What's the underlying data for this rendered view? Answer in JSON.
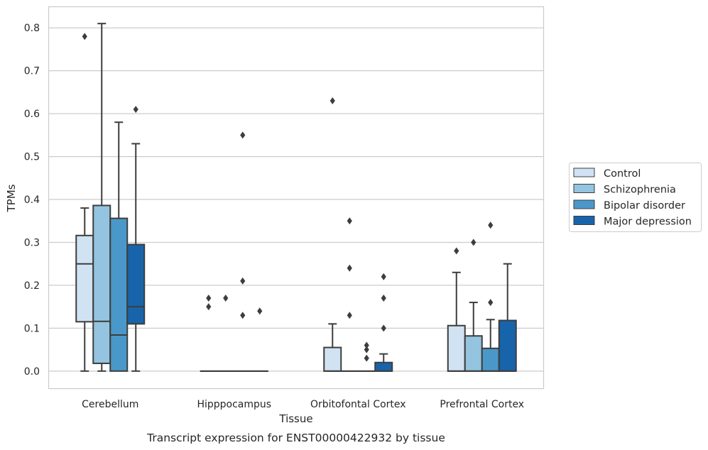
{
  "chart_data": {
    "type": "box",
    "caption": "Transcript expression for ENST00000422932 by tissue",
    "xlabel": "Tissue",
    "ylabel": "TPMs",
    "ylim": [
      -0.04,
      0.85
    ],
    "yticks": [
      0.0,
      0.1,
      0.2,
      0.3,
      0.4,
      0.5,
      0.6,
      0.7,
      0.8
    ],
    "ytick_labels": [
      "0.0",
      "0.1",
      "0.2",
      "0.3",
      "0.4",
      "0.5",
      "0.6",
      "0.7",
      "0.8"
    ],
    "grid": "horizontal",
    "legend_position": "right",
    "categories": [
      "Cerebellum",
      "Hipppocampus",
      "Orbitofontal Cortex",
      "Prefrontal Cortex"
    ],
    "series": [
      {
        "name": "Control",
        "color": "#d1e2f2",
        "boxes": [
          {
            "whislo": 0.0,
            "q1": 0.115,
            "med": 0.25,
            "q3": 0.316,
            "whishi": 0.38,
            "fliers": [
              0.78
            ]
          },
          {
            "whislo": 0.0,
            "q1": 0.0,
            "med": 0.0,
            "q3": 0.0,
            "whishi": 0.0,
            "fliers": [
              0.15,
              0.17
            ]
          },
          {
            "whislo": 0.0,
            "q1": 0.0,
            "med": 0.0,
            "q3": 0.055,
            "whishi": 0.11,
            "fliers": [
              0.63
            ]
          },
          {
            "whislo": 0.0,
            "q1": 0.0,
            "med": 0.0,
            "q3": 0.106,
            "whishi": 0.23,
            "fliers": [
              0.28
            ]
          }
        ]
      },
      {
        "name": "Schizophrenia",
        "color": "#94c4df",
        "boxes": [
          {
            "whislo": 0.0,
            "q1": 0.018,
            "med": 0.116,
            "q3": 0.386,
            "whishi": 0.81,
            "fliers": []
          },
          {
            "whislo": 0.0,
            "q1": 0.0,
            "med": 0.0,
            "q3": 0.0,
            "whishi": 0.0,
            "fliers": [
              0.17
            ]
          },
          {
            "whislo": 0.0,
            "q1": 0.0,
            "med": 0.0,
            "q3": 0.0,
            "whishi": 0.0,
            "fliers": [
              0.13,
              0.24,
              0.35
            ]
          },
          {
            "whislo": 0.0,
            "q1": 0.0,
            "med": 0.0,
            "q3": 0.082,
            "whishi": 0.16,
            "fliers": [
              0.3
            ]
          }
        ]
      },
      {
        "name": "Bipolar disorder",
        "color": "#4a98c9",
        "boxes": [
          {
            "whislo": 0.0,
            "q1": 0.0,
            "med": 0.084,
            "q3": 0.356,
            "whishi": 0.58,
            "fliers": []
          },
          {
            "whislo": 0.0,
            "q1": 0.0,
            "med": 0.0,
            "q3": 0.0,
            "whishi": 0.0,
            "fliers": [
              0.13,
              0.21,
              0.55
            ]
          },
          {
            "whislo": 0.0,
            "q1": 0.0,
            "med": 0.0,
            "q3": 0.0,
            "whishi": 0.0,
            "fliers": [
              0.03,
              0.05,
              0.06
            ]
          },
          {
            "whislo": 0.0,
            "q1": 0.0,
            "med": 0.0,
            "q3": 0.053,
            "whishi": 0.12,
            "fliers": [
              0.16,
              0.34
            ]
          }
        ]
      },
      {
        "name": "Major depression",
        "color": "#1764ab",
        "boxes": [
          {
            "whislo": 0.0,
            "q1": 0.11,
            "med": 0.15,
            "q3": 0.295,
            "whishi": 0.53,
            "fliers": [
              0.61
            ]
          },
          {
            "whislo": 0.0,
            "q1": 0.0,
            "med": 0.0,
            "q3": 0.0,
            "whishi": 0.0,
            "fliers": [
              0.14
            ]
          },
          {
            "whislo": 0.0,
            "q1": 0.0,
            "med": 0.0,
            "q3": 0.02,
            "whishi": 0.04,
            "fliers": [
              0.1,
              0.17,
              0.22
            ]
          },
          {
            "whislo": 0.0,
            "q1": 0.0,
            "med": 0.0,
            "q3": 0.118,
            "whishi": 0.25,
            "fliers": []
          }
        ]
      }
    ]
  }
}
